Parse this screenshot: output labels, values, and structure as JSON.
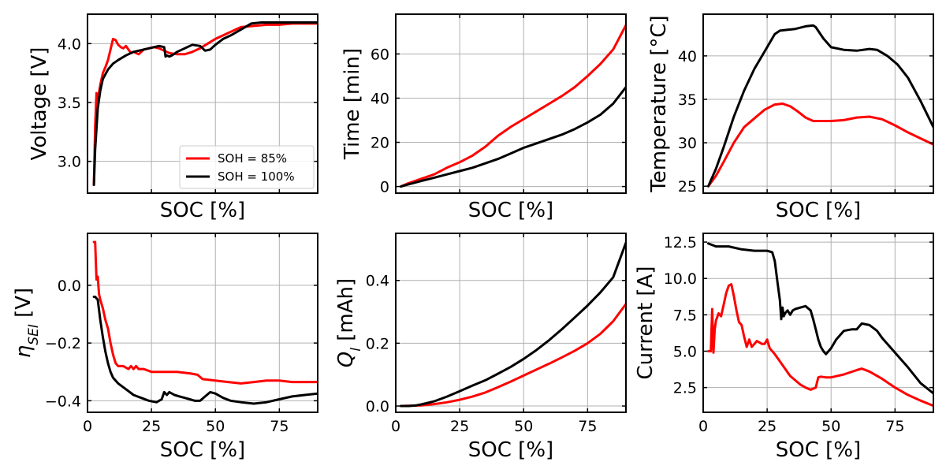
{
  "legend": {
    "entries": [
      {
        "label": "SOH = 85%",
        "color": "#ff0000"
      },
      {
        "label": "SOH = 100%",
        "color": "#000000"
      }
    ]
  },
  "chart_data": [
    {
      "type": "line",
      "id": "voltage",
      "xlabel": "SOC [%]",
      "ylabel": "Voltage [V]",
      "xlim": [
        0,
        90
      ],
      "ylim": [
        2.73,
        4.25
      ],
      "xticks": [
        0,
        25,
        50,
        75
      ],
      "show_x_tick_labels": false,
      "yticks": [
        3.0,
        3.5,
        4.0
      ],
      "ytick_labels": [
        "3.0",
        "3.5",
        "4.0"
      ],
      "legend": true,
      "series": [
        {
          "name": "SOH = 85%",
          "color": "#ff0000",
          "x": [
            2.5,
            3,
            3.5,
            4,
            5,
            6,
            7,
            8,
            9,
            10,
            11,
            12,
            13,
            14,
            15,
            16,
            17,
            18,
            20,
            22,
            24,
            26,
            28,
            30,
            32,
            35,
            38,
            41,
            44,
            47,
            50,
            55,
            60,
            65,
            70,
            75,
            80,
            85,
            90
          ],
          "y": [
            2.8,
            3.3,
            3.58,
            3.52,
            3.65,
            3.75,
            3.8,
            3.86,
            3.95,
            4.04,
            4.03,
            3.99,
            3.97,
            3.96,
            3.98,
            3.95,
            3.92,
            3.93,
            3.91,
            3.95,
            3.96,
            3.97,
            3.96,
            3.94,
            3.92,
            3.91,
            3.91,
            3.93,
            3.96,
            4.0,
            4.04,
            4.09,
            4.14,
            4.15,
            4.16,
            4.16,
            4.17,
            4.17,
            4.17
          ]
        },
        {
          "name": "SOH = 100%",
          "color": "#000000",
          "x": [
            2.5,
            3,
            4,
            5,
            6,
            8,
            10,
            12,
            15,
            18,
            20,
            22,
            24,
            26,
            28,
            30,
            30.5,
            31,
            32,
            33,
            35,
            38,
            41,
            44,
            46,
            48,
            50,
            53,
            56,
            60,
            64,
            68,
            72,
            76,
            80,
            84,
            87,
            90
          ],
          "y": [
            2.8,
            3.1,
            3.45,
            3.6,
            3.7,
            3.78,
            3.83,
            3.86,
            3.9,
            3.93,
            3.94,
            3.95,
            3.96,
            3.97,
            3.98,
            3.97,
            3.89,
            3.9,
            3.89,
            3.9,
            3.93,
            3.96,
            3.99,
            3.98,
            3.94,
            3.95,
            3.99,
            4.04,
            4.07,
            4.12,
            4.17,
            4.18,
            4.18,
            4.18,
            4.18,
            4.18,
            4.18,
            4.18
          ]
        }
      ]
    },
    {
      "type": "line",
      "id": "time",
      "xlabel": "SOC [%]",
      "ylabel": "Time [min]",
      "xlim": [
        0,
        90
      ],
      "ylim": [
        -3,
        78
      ],
      "xticks": [
        0,
        25,
        50,
        75
      ],
      "show_x_tick_labels": false,
      "yticks": [
        0,
        20,
        40,
        60
      ],
      "ytick_labels": [
        "0",
        "20",
        "40",
        "60"
      ],
      "series": [
        {
          "name": "SOH = 85%",
          "color": "#ff0000",
          "x": [
            2,
            5,
            10,
            15,
            20,
            25,
            30,
            35,
            40,
            45,
            50,
            55,
            60,
            65,
            70,
            75,
            80,
            85,
            90
          ],
          "y": [
            0,
            1.5,
            3.5,
            5.5,
            8.5,
            11,
            14,
            18,
            23,
            27,
            30.5,
            34,
            37.5,
            41,
            45,
            50,
            55.5,
            62,
            73
          ]
        },
        {
          "name": "SOH = 100%",
          "color": "#000000",
          "x": [
            2,
            5,
            10,
            15,
            20,
            25,
            30,
            35,
            40,
            45,
            50,
            55,
            60,
            65,
            70,
            75,
            80,
            85,
            90
          ],
          "y": [
            0,
            1,
            2.5,
            4,
            5.5,
            7,
            8.5,
            10.5,
            12.5,
            15,
            17.5,
            19.5,
            21.5,
            23.5,
            26,
            29,
            32.5,
            37.5,
            45
          ]
        }
      ]
    },
    {
      "type": "line",
      "id": "temperature",
      "xlabel": "SOC [%]",
      "ylabel": "Temperature [°C]",
      "xlim": [
        0,
        90
      ],
      "ylim": [
        24.2,
        44.8
      ],
      "xticks": [
        0,
        25,
        50,
        75
      ],
      "show_x_tick_labels": false,
      "yticks": [
        25,
        30,
        35,
        40
      ],
      "ytick_labels": [
        "25",
        "30",
        "35",
        "40"
      ],
      "series": [
        {
          "name": "SOH = 85%",
          "color": "#ff0000",
          "x": [
            2,
            5,
            8,
            12,
            16,
            20,
            24,
            28,
            31,
            34,
            37,
            40,
            43,
            46,
            50,
            55,
            60,
            65,
            70,
            75,
            80,
            85,
            90
          ],
          "y": [
            25,
            26.2,
            27.8,
            30,
            31.8,
            32.8,
            33.8,
            34.4,
            34.5,
            34.2,
            33.6,
            32.9,
            32.5,
            32.5,
            32.5,
            32.6,
            32.9,
            33.0,
            32.7,
            32.0,
            31.2,
            30.5,
            29.8
          ]
        },
        {
          "name": "SOH = 100%",
          "color": "#000000",
          "x": [
            2,
            5,
            8,
            12,
            16,
            20,
            24,
            28,
            30,
            33,
            36,
            40,
            43,
            44,
            47,
            50,
            55,
            60,
            65,
            68,
            72,
            76,
            80,
            85,
            90
          ],
          "y": [
            25,
            27,
            29.5,
            33,
            36,
            38.5,
            40.5,
            42.5,
            42.9,
            43.0,
            43.1,
            43.4,
            43.5,
            43.3,
            42.0,
            41.0,
            40.7,
            40.6,
            40.8,
            40.7,
            40.0,
            39.0,
            37.5,
            34.8,
            31.8
          ]
        }
      ]
    },
    {
      "type": "line",
      "id": "eta-sei",
      "xlabel": "SOC [%]",
      "ylabel": "ηSEI [V]",
      "xlim": [
        0,
        90
      ],
      "ylim": [
        -0.44,
        0.18
      ],
      "xticks": [
        0,
        25,
        50,
        75
      ],
      "show_x_tick_labels": true,
      "yticks": [
        -0.4,
        -0.2,
        0.0
      ],
      "ytick_labels": [
        "−0.4",
        "−0.2",
        "0.0"
      ],
      "series": [
        {
          "name": "SOH = 85%",
          "color": "#ff0000",
          "x": [
            2.5,
            3,
            3.5,
            4,
            4.5,
            5,
            6,
            7,
            8,
            9,
            10,
            11,
            12,
            14,
            16,
            17,
            18,
            19,
            20,
            22,
            25,
            30,
            35,
            40,
            43,
            45,
            50,
            55,
            60,
            65,
            70,
            75,
            80,
            85,
            90
          ],
          "y": [
            0.15,
            0.15,
            0.02,
            0.03,
            -0.03,
            -0.05,
            -0.08,
            -0.12,
            -0.15,
            -0.2,
            -0.24,
            -0.27,
            -0.28,
            -0.28,
            -0.29,
            -0.28,
            -0.29,
            -0.28,
            -0.29,
            -0.29,
            -0.3,
            -0.3,
            -0.3,
            -0.305,
            -0.31,
            -0.325,
            -0.33,
            -0.335,
            -0.34,
            -0.335,
            -0.33,
            -0.33,
            -0.335,
            -0.335,
            -0.335
          ]
        },
        {
          "name": "SOH = 100%",
          "color": "#000000",
          "x": [
            2.5,
            3,
            4,
            5,
            6,
            7,
            8,
            9,
            10,
            12,
            15,
            18,
            21,
            24,
            27,
            29,
            30,
            31,
            32,
            34,
            36,
            38,
            40,
            42,
            44,
            46,
            48,
            50,
            53,
            56,
            60,
            65,
            70,
            75,
            80,
            85,
            90
          ],
          "y": [
            -0.04,
            -0.04,
            -0.05,
            -0.12,
            -0.18,
            -0.23,
            -0.27,
            -0.3,
            -0.32,
            -0.34,
            -0.36,
            -0.38,
            -0.39,
            -0.4,
            -0.405,
            -0.395,
            -0.37,
            -0.38,
            -0.37,
            -0.38,
            -0.385,
            -0.39,
            -0.395,
            -0.4,
            -0.4,
            -0.385,
            -0.37,
            -0.375,
            -0.39,
            -0.4,
            -0.405,
            -0.41,
            -0.405,
            -0.395,
            -0.385,
            -0.38,
            -0.375
          ]
        }
      ]
    },
    {
      "type": "line",
      "id": "q-loss",
      "xlabel": "SOC [%]",
      "ylabel": "Ql [mAh]",
      "xlim": [
        0,
        90
      ],
      "ylim": [
        -0.02,
        0.55
      ],
      "xticks": [
        0,
        25,
        50,
        75
      ],
      "show_x_tick_labels": true,
      "yticks": [
        0.0,
        0.2,
        0.4
      ],
      "ytick_labels": [
        "0.0",
        "0.2",
        "0.4"
      ],
      "series": [
        {
          "name": "SOH = 85%",
          "color": "#ff0000",
          "x": [
            2,
            10,
            15,
            20,
            25,
            30,
            35,
            40,
            45,
            50,
            55,
            60,
            65,
            70,
            75,
            80,
            85,
            90
          ],
          "y": [
            0,
            0.002,
            0.006,
            0.012,
            0.02,
            0.03,
            0.043,
            0.06,
            0.078,
            0.097,
            0.116,
            0.135,
            0.155,
            0.176,
            0.2,
            0.23,
            0.27,
            0.325
          ]
        },
        {
          "name": "SOH = 100%",
          "color": "#000000",
          "x": [
            2,
            5,
            8,
            10,
            15,
            20,
            25,
            30,
            35,
            40,
            45,
            50,
            55,
            60,
            65,
            70,
            75,
            80,
            85,
            90
          ],
          "y": [
            0,
            0,
            0.002,
            0.005,
            0.015,
            0.03,
            0.047,
            0.065,
            0.082,
            0.103,
            0.125,
            0.15,
            0.178,
            0.21,
            0.245,
            0.282,
            0.32,
            0.362,
            0.41,
            0.52
          ]
        }
      ]
    },
    {
      "type": "line",
      "id": "current",
      "xlabel": "SOC [%]",
      "ylabel": "Current [A]",
      "xlim": [
        0,
        90
      ],
      "ylim": [
        0.8,
        13.1
      ],
      "xticks": [
        0,
        25,
        50,
        75
      ],
      "show_x_tick_labels": true,
      "yticks": [
        2.5,
        5.0,
        7.5,
        10.0,
        12.5
      ],
      "ytick_labels": [
        "2.5",
        "5.0",
        "7.5",
        "10.0",
        "12.5"
      ],
      "series": [
        {
          "name": "SOH = 85%",
          "color": "#ff0000",
          "x": [
            2,
            3,
            3.5,
            4,
            4.5,
            5,
            6,
            7,
            8,
            9,
            10,
            11,
            12,
            13,
            14,
            15,
            16,
            17,
            18,
            19,
            20,
            21,
            22,
            23,
            24,
            25,
            26,
            28,
            30,
            32,
            34,
            36,
            38,
            40,
            42,
            44,
            45,
            46,
            48,
            50,
            55,
            60,
            62,
            65,
            70,
            75,
            80,
            85,
            90
          ],
          "y": [
            5.0,
            5.0,
            7.9,
            4.9,
            6.5,
            7.1,
            7.6,
            7.4,
            8.2,
            9.0,
            9.5,
            9.6,
            8.8,
            7.8,
            7.0,
            6.8,
            6.0,
            5.3,
            5.8,
            5.3,
            5.5,
            5.7,
            5.6,
            5.5,
            5.5,
            5.8,
            5.2,
            4.8,
            4.3,
            3.8,
            3.3,
            3.0,
            2.7,
            2.5,
            2.35,
            2.5,
            3.2,
            3.25,
            3.2,
            3.2,
            3.4,
            3.7,
            3.8,
            3.6,
            3.1,
            2.5,
            2.0,
            1.6,
            1.25
          ]
        },
        {
          "name": "SOH = 100%",
          "color": "#000000",
          "x": [
            2,
            5,
            10,
            15,
            20,
            25,
            27,
            28,
            29,
            30,
            30.5,
            31,
            31.5,
            32,
            33,
            34,
            35,
            36,
            38,
            40,
            42,
            43,
            44,
            45,
            46,
            47,
            48,
            50,
            52,
            55,
            58,
            60,
            62,
            65,
            68,
            70,
            75,
            80,
            85,
            90
          ],
          "y": [
            12.4,
            12.2,
            12.2,
            12.0,
            11.9,
            11.9,
            11.8,
            11.2,
            9.8,
            8.5,
            7.2,
            8.0,
            7.4,
            7.6,
            7.8,
            7.5,
            7.8,
            7.9,
            8.0,
            8.1,
            7.8,
            7.2,
            6.5,
            5.8,
            5.3,
            5.0,
            4.8,
            5.2,
            5.8,
            6.4,
            6.5,
            6.5,
            6.9,
            6.8,
            6.4,
            5.9,
            4.9,
            3.9,
            2.8,
            2.1
          ]
        }
      ]
    }
  ]
}
